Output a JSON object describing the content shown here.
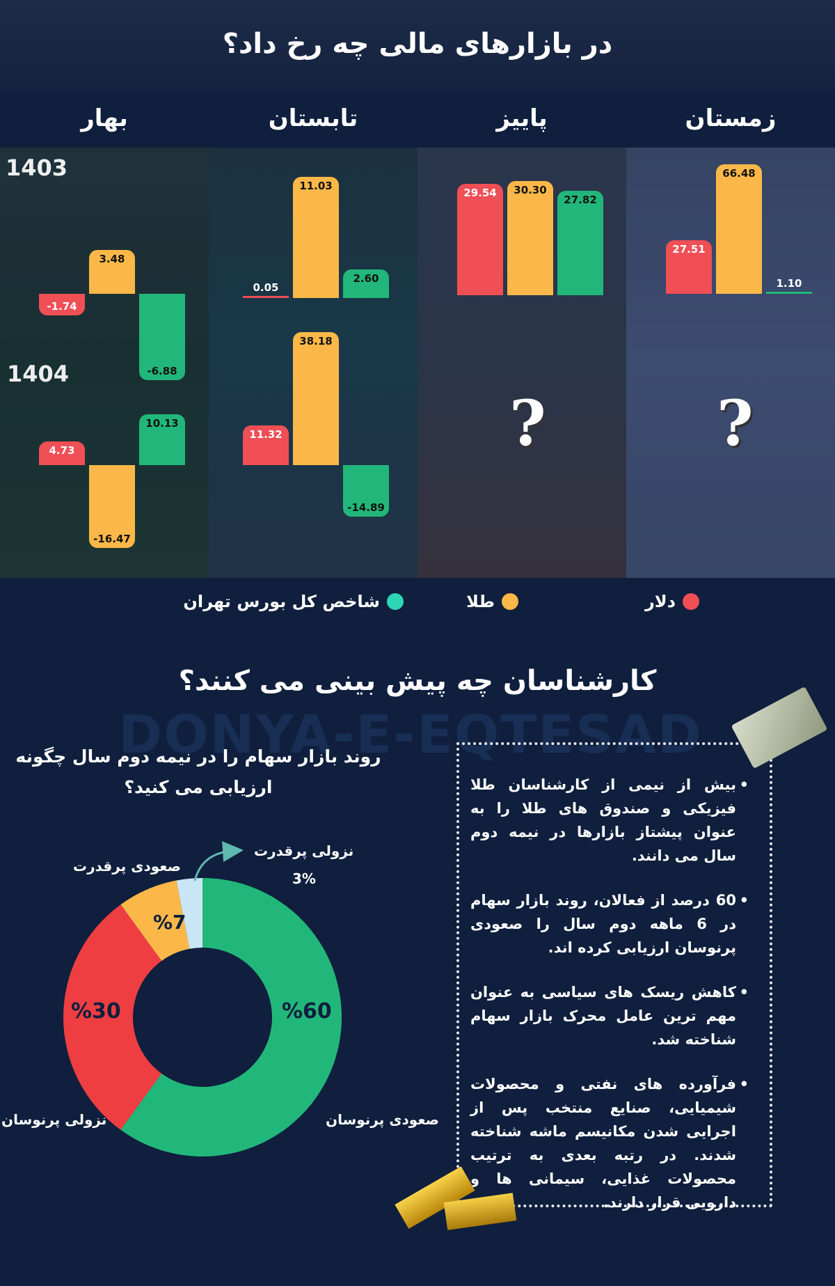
{
  "header": {
    "title": "در بازارهای مالی چه رخ داد؟"
  },
  "seasons": [
    "زمستان",
    "پاییز",
    "تابستان",
    "بهار"
  ],
  "years": [
    "1403",
    "1404"
  ],
  "chart_data": {
    "type": "bar",
    "series": [
      {
        "name": "دلار",
        "color": "#ef4f55"
      },
      {
        "name": "طلا",
        "color": "#fbb848"
      },
      {
        "name": "شاخص کل بورس تهران",
        "color": "#22b77a"
      }
    ],
    "panels": [
      {
        "season": "بهار",
        "year": "1403",
        "values": [
          -1.74,
          3.48,
          -6.88
        ],
        "labels": [
          "-1.74",
          "3.48",
          "-6.88"
        ]
      },
      {
        "season": "تابستان",
        "year": "1403",
        "values": [
          0.05,
          11.03,
          2.6
        ],
        "labels": [
          "0.05",
          "11.03",
          "2.60"
        ]
      },
      {
        "season": "پاییز",
        "year": "1403",
        "values": [
          29.54,
          30.3,
          27.82
        ],
        "labels": [
          "29.54",
          "30.30",
          "27.82"
        ]
      },
      {
        "season": "زمستان",
        "year": "1403",
        "values": [
          27.51,
          66.48,
          1.1
        ],
        "labels": [
          "27.51",
          "66.48",
          "1.10"
        ]
      },
      {
        "season": "بهار",
        "year": "1404",
        "values": [
          4.73,
          -16.47,
          10.13
        ],
        "labels": [
          "4.73",
          "-16.47",
          "10.13"
        ]
      },
      {
        "season": "تابستان",
        "year": "1404",
        "values": [
          11.32,
          38.18,
          -14.89
        ],
        "labels": [
          "11.32",
          "38.18",
          "-14.89"
        ]
      },
      {
        "season": "پاییز",
        "year": "1404",
        "unknown": "?"
      },
      {
        "season": "زمستان",
        "year": "1404",
        "unknown": "?"
      }
    ]
  },
  "legend": [
    "دلار",
    "طلا",
    "شاخص کل بورس تهران"
  ],
  "watermark": "DONYA-E-EQTESAD",
  "section2": {
    "title": "کارشناسان چه پیش بینی می کنند؟",
    "question": "روند بازار سهام را در نیمه دوم سال چگونه ارزیابی می کنید؟"
  },
  "donut": {
    "type": "pie",
    "slices": [
      {
        "name": "صعودی پرنوسان",
        "value": 60,
        "label": "%60",
        "color": "#22b77a"
      },
      {
        "name": "نزولی پرنوسان",
        "value": 30,
        "label": "%30",
        "color": "#ef3e42"
      },
      {
        "name": "صعودی پرقدرت",
        "value": 7,
        "label": "%7",
        "color": "#fbb848"
      },
      {
        "name": "نزولی پرقدرت",
        "value": 3,
        "label": "3%",
        "color": "#c9e6f5"
      }
    ]
  },
  "bullets": [
    "بیش از نیمی از کارشناسان طلا فیزیکی و صندوق های طلا را به عنوان پیشتاز بازارها در نیمه دوم سال می دانند.",
    "60 درصد از فعالان، روند بازار سهام در 6 ماهه دوم سال را صعودی  پرنوسان ارزیابی کرده اند.",
    "کاهش ریسک های سیاسی به عنوان مهم ترین عامل محرک بازار سهام شناخته شد.",
    "فرآورده های نفتی و محصولات شیمیایی، صنایع منتخب پس از اجرایی شدن مکانیسم ماشه شناخته شدند. در رتبه بعدی به ترتیب محصولات غذایی، سیمانی ها  و دارویی قرار دارند."
  ]
}
